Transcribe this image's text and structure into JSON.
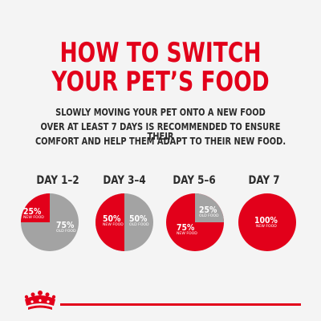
{
  "title": {
    "line1": "HOW TO SWITCH",
    "line2": "YOUR PET’S FOOD"
  },
  "intro": {
    "line1": "SLOWLY MOVING YOUR PET ONTO A NEW FOOD",
    "line2": "OVER AT LEAST 7 DAYS IS RECOMMENDED TO ENSURE THEIR",
    "line3": "COMFORT AND HELP THEM ADAPT TO THEIR NEW FOOD."
  },
  "colors": {
    "brand_red": "#e2001a",
    "old_food_gray": "#a3a3a3",
    "text_dark": "#2b2b2b",
    "background": "#f4f4f4"
  },
  "stages": [
    {
      "day": "DAY 1–2",
      "new_pct_value": 25,
      "new_label": "25%",
      "new_text": "NEW FOOD",
      "old_label": "75%",
      "old_text": "OLD FOOD"
    },
    {
      "day": "DAY 3–4",
      "new_pct_value": 50,
      "new_label": "50%",
      "new_text": "NEW FOOD",
      "old_label": "50%",
      "old_text": "OLD FOOD"
    },
    {
      "day": "DAY 5–6",
      "new_pct_value": 75,
      "new_label": "75%",
      "new_text": "NEW FOOD",
      "old_label": "25%",
      "old_text": "OLD FOOD"
    },
    {
      "day": "DAY 7",
      "new_pct_value": 100,
      "new_label": "100%",
      "new_text": "NEW FOOD"
    }
  ],
  "logo": {
    "icon": "royal-canin-crown-icon"
  }
}
